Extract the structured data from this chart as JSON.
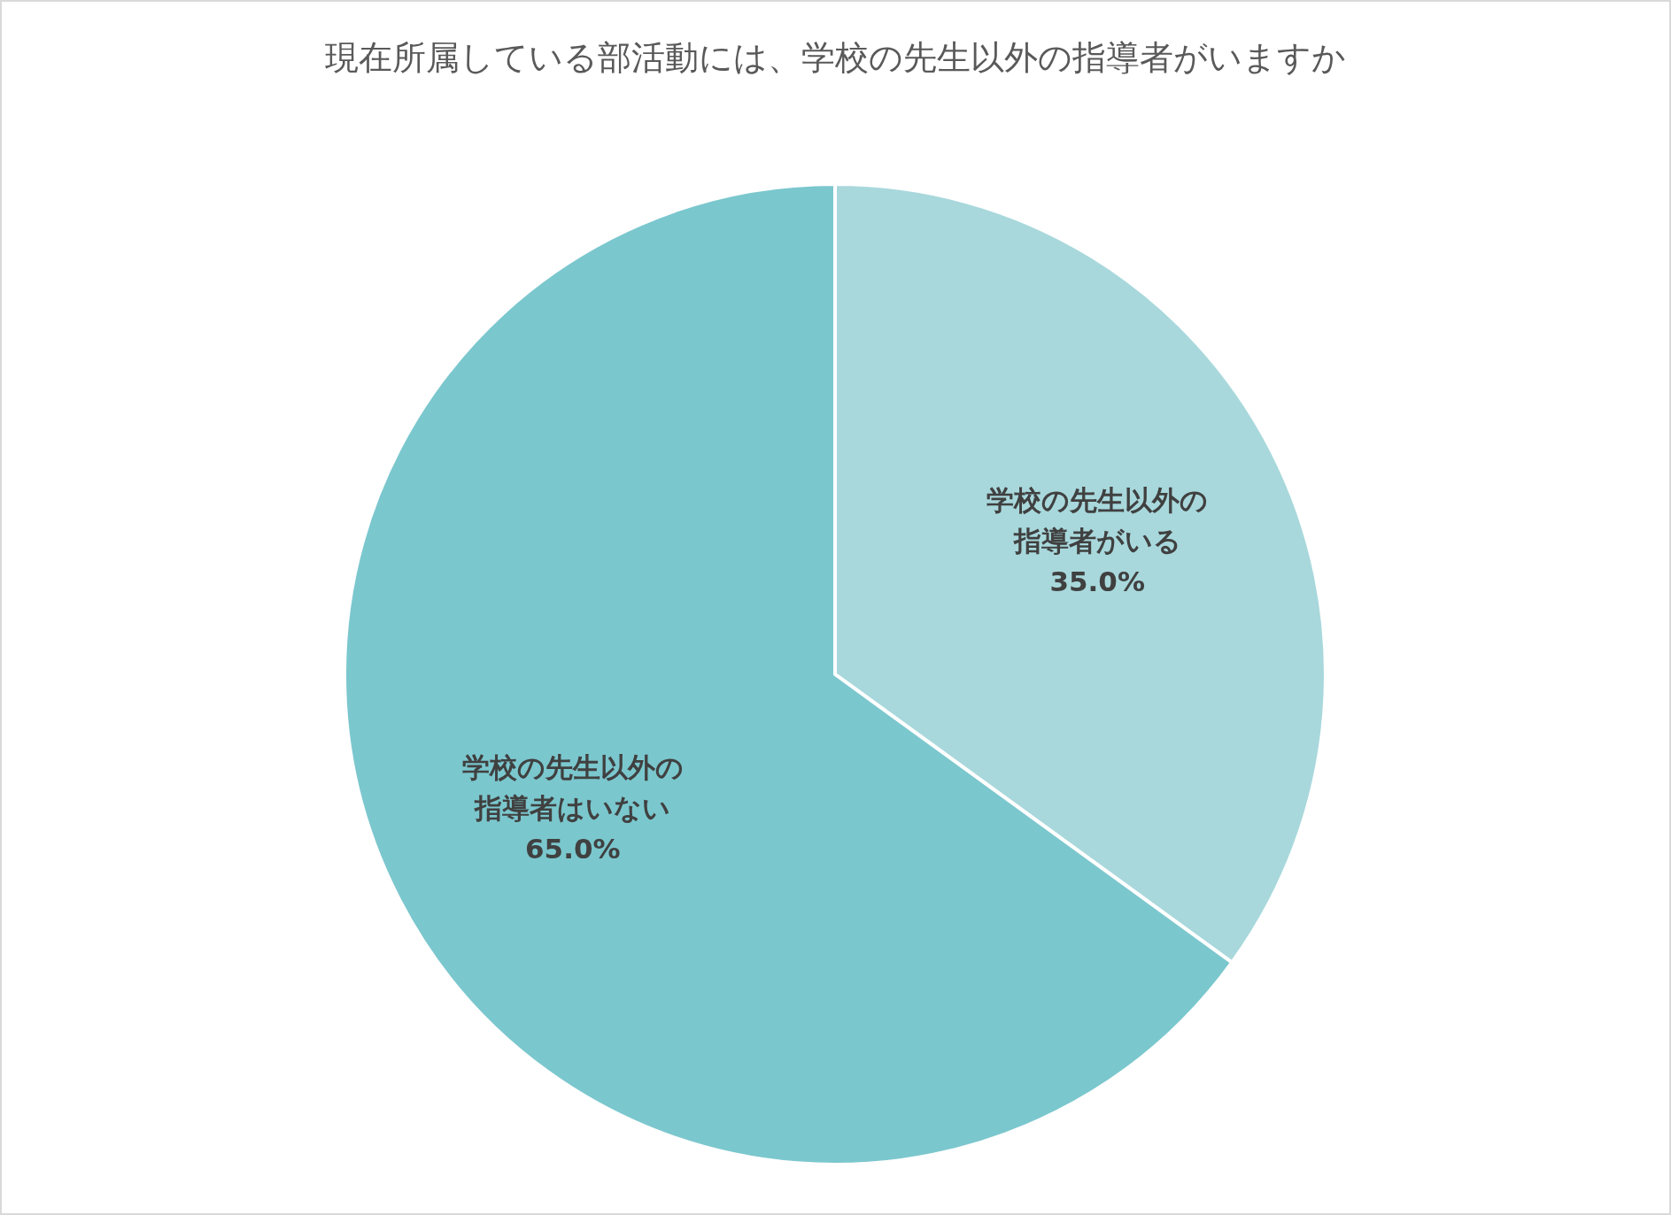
{
  "chart_data": {
    "type": "pie",
    "title": "現在所属している部活動には、学校の先生以外の指導者がいますか",
    "categories": [
      "学校の先生以外の指導者がいる",
      "学校の先生以外の指導者はいない"
    ],
    "values": [
      35,
      65
    ],
    "colors": [
      "#a8d8dc",
      "#7bc7ce"
    ],
    "value_labels": [
      "35.0%",
      "65.0%"
    ]
  }
}
